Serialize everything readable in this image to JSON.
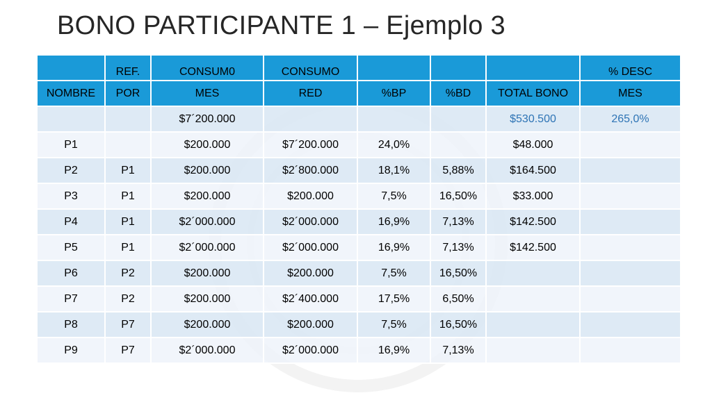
{
  "title": "BONO PARTICIPANTE 1 – Ejemplo 3",
  "table": {
    "header_row1": [
      "",
      "REF.",
      "CONSUM0",
      "CONSUMO",
      "",
      "",
      "",
      "% DESC"
    ],
    "header_row2": [
      "NOMBRE",
      "POR",
      "MES",
      "RED",
      "%BP",
      "%BD",
      "TOTAL BONO",
      "MES"
    ],
    "rows": [
      [
        "",
        "",
        "$7´200.000",
        "",
        "",
        "",
        "$530.500",
        "265,0%"
      ],
      [
        "P1",
        "",
        "$200.000",
        "$7´200.000",
        "24,0%",
        "",
        "$48.000",
        ""
      ],
      [
        "P2",
        "P1",
        "$200.000",
        "$2´800.000",
        "18,1%",
        "5,88%",
        "$164.500",
        ""
      ],
      [
        "P3",
        "P1",
        "$200.000",
        "$200.000",
        "7,5%",
        "16,50%",
        "$33.000",
        ""
      ],
      [
        "P4",
        "P1",
        "$2´000.000",
        "$2´000.000",
        "16,9%",
        "7,13%",
        "$142.500",
        ""
      ],
      [
        "P5",
        "P1",
        "$2´000.000",
        "$2´000.000",
        "16,9%",
        "7,13%",
        "$142.500",
        ""
      ],
      [
        "P6",
        "P2",
        "$200.000",
        "$200.000",
        "7,5%",
        "16,50%",
        "",
        ""
      ],
      [
        "P7",
        "P2",
        "$200.000",
        "$2´400.000",
        "17,5%",
        "6,50%",
        "",
        ""
      ],
      [
        "P8",
        "P7",
        "$200.000",
        "$200.000",
        "7,5%",
        "16,50%",
        "",
        ""
      ],
      [
        "P9",
        "P7",
        "$2´000.000",
        "$2´000.000",
        "16,9%",
        "7,13%",
        "",
        ""
      ]
    ]
  },
  "colors": {
    "header_fill": "#1a9ad8",
    "band_dark": "#dae7f4",
    "band_light": "#eef3fa",
    "highlight_text": "#2e74b5"
  }
}
